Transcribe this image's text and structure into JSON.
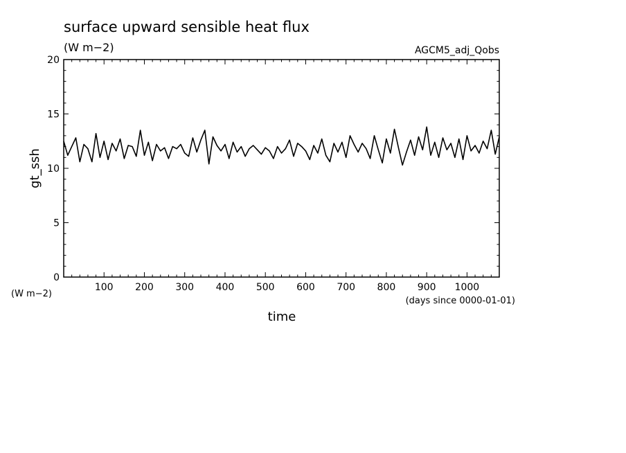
{
  "chart_data": {
    "type": "line",
    "title": "surface upward sensible heat flux",
    "units_label": "(W m−2)",
    "dataset": "AGCM5_adj_Qobs",
    "xlabel": "time",
    "x_units": "(days since 0000-01-01)",
    "ylabel": "gt_ssh",
    "y_units": "(W m−2)",
    "xlim": [
      0,
      1080
    ],
    "ylim": [
      0,
      20
    ],
    "x_ticks": [
      100,
      200,
      300,
      400,
      500,
      600,
      700,
      800,
      900,
      1000
    ],
    "y_ticks": [
      0,
      5,
      10,
      15,
      20
    ],
    "grid": false,
    "x": [
      0,
      10,
      20,
      30,
      40,
      50,
      60,
      70,
      80,
      90,
      100,
      110,
      120,
      130,
      140,
      150,
      160,
      170,
      180,
      190,
      200,
      210,
      220,
      230,
      240,
      250,
      260,
      270,
      280,
      290,
      300,
      310,
      320,
      330,
      340,
      350,
      360,
      370,
      380,
      390,
      400,
      410,
      420,
      430,
      440,
      450,
      460,
      470,
      480,
      490,
      500,
      510,
      520,
      530,
      540,
      550,
      560,
      570,
      580,
      590,
      600,
      610,
      620,
      630,
      640,
      650,
      660,
      670,
      680,
      690,
      700,
      710,
      720,
      730,
      740,
      750,
      760,
      770,
      780,
      790,
      800,
      810,
      820,
      830,
      840,
      850,
      860,
      870,
      880,
      890,
      900,
      910,
      920,
      930,
      940,
      950,
      960,
      970,
      980,
      990,
      1000,
      1010,
      1020,
      1030,
      1040,
      1050,
      1060,
      1070,
      1080
    ],
    "series": [
      {
        "values": [
          12.5,
          11.2,
          12.0,
          12.8,
          10.6,
          12.2,
          11.8,
          10.6,
          13.2,
          11.0,
          12.5,
          10.8,
          12.3,
          11.6,
          12.7,
          10.9,
          12.1,
          12.0,
          11.1,
          13.5,
          11.2,
          12.4,
          10.7,
          12.2,
          11.6,
          11.9,
          10.9,
          12.0,
          11.8,
          12.2,
          11.4,
          11.1,
          12.8,
          11.5,
          12.6,
          13.5,
          10.4,
          12.9,
          12.1,
          11.6,
          12.2,
          10.9,
          12.4,
          11.5,
          12.0,
          11.1,
          11.8,
          12.1,
          11.7,
          11.3,
          11.9,
          11.6,
          10.9,
          12.0,
          11.4,
          11.8,
          12.6,
          11.1,
          12.3,
          12.0,
          11.6,
          10.8,
          12.1,
          11.4,
          12.7,
          11.2,
          10.6,
          12.3,
          11.5,
          12.4,
          11.0,
          13.0,
          12.2,
          11.5,
          12.3,
          11.8,
          10.9,
          13.0,
          11.7,
          10.5,
          12.7,
          11.4,
          13.6,
          11.9,
          10.3,
          11.5,
          12.6,
          11.2,
          12.9,
          11.7,
          13.8,
          11.2,
          12.4,
          11.0,
          12.8,
          11.7,
          12.3,
          11.0,
          12.7,
          10.8,
          13.0,
          11.6,
          12.1,
          11.4,
          12.5,
          11.8,
          13.5,
          11.3,
          12.9
        ]
      }
    ]
  }
}
